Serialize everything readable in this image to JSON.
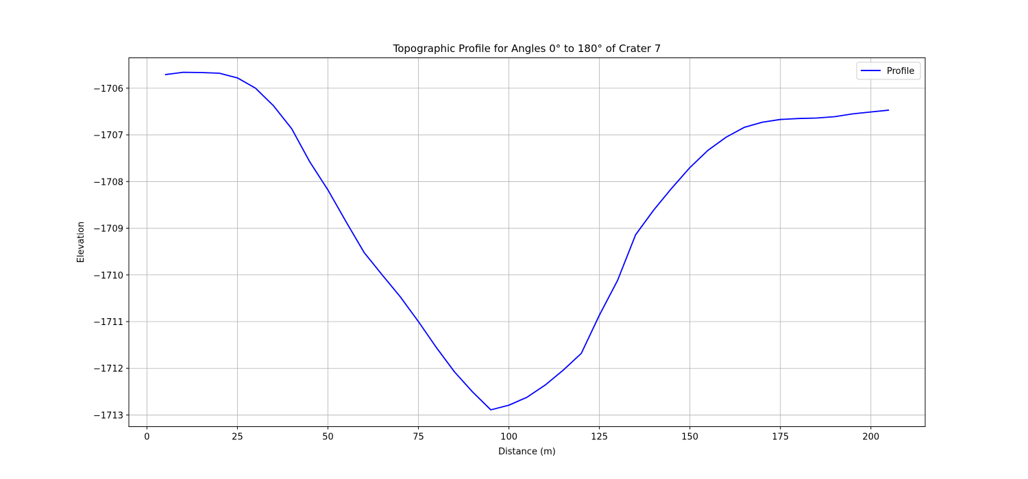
{
  "chart_data": {
    "type": "line",
    "title": "Topographic Profile for Angles 0° to 180° of Crater 7",
    "xlabel": "Distance (m)",
    "ylabel": "Elevation",
    "xlim": [
      -5,
      215
    ],
    "ylim": [
      -1713.25,
      -1705.35
    ],
    "xticks": [
      0,
      25,
      50,
      75,
      100,
      125,
      150,
      175,
      200
    ],
    "yticks": [
      -1713,
      -1712,
      -1711,
      -1710,
      -1709,
      -1708,
      -1707,
      -1706
    ],
    "grid": true,
    "legend_position": "top-right",
    "series": [
      {
        "name": "Profile",
        "color": "#0000ff",
        "x": [
          5,
          10,
          15,
          20,
          25,
          30,
          35,
          40,
          45,
          50,
          55,
          60,
          65,
          70,
          75,
          80,
          85,
          90,
          95,
          100,
          105,
          110,
          115,
          120,
          125,
          130,
          135,
          140,
          145,
          150,
          155,
          160,
          165,
          170,
          175,
          180,
          185,
          190,
          195,
          200,
          205
        ],
        "y": [
          -1705.71,
          -1705.66,
          -1705.665,
          -1705.68,
          -1705.78,
          -1706.0,
          -1706.38,
          -1706.87,
          -1707.58,
          -1708.18,
          -1708.86,
          -1709.52,
          -1710.0,
          -1710.47,
          -1711.0,
          -1711.56,
          -1712.08,
          -1712.51,
          -1712.89,
          -1712.79,
          -1712.62,
          -1712.36,
          -1712.04,
          -1711.68,
          -1710.86,
          -1710.12,
          -1709.14,
          -1708.61,
          -1708.14,
          -1707.7,
          -1707.33,
          -1707.05,
          -1706.84,
          -1706.73,
          -1706.67,
          -1706.65,
          -1706.64,
          -1706.61,
          -1706.55,
          -1706.51,
          -1706.47
        ]
      }
    ]
  }
}
